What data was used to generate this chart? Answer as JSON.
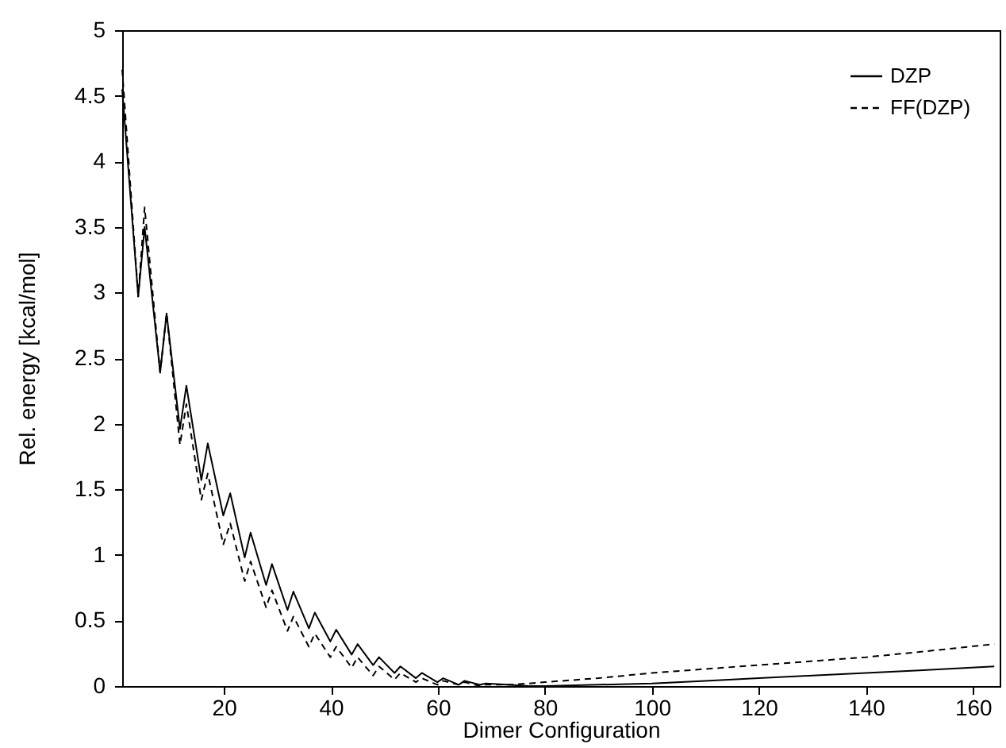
{
  "chart_data": {
    "type": "line",
    "xlabel": "Dimer Configuration",
    "ylabel": "Rel. energy [kcal/mol]",
    "xlim": [
      1,
      165
    ],
    "xticks": [
      20,
      40,
      60,
      80,
      100,
      120,
      140,
      160
    ],
    "ylim": [
      0,
      5
    ],
    "yticks": [
      0,
      0.5,
      1,
      1.5,
      2,
      2.5,
      3,
      3.5,
      4,
      4.5,
      5
    ],
    "grid": false,
    "legend": "top right",
    "marker": "none",
    "series": [
      {
        "name": "DZP",
        "color": "#000000",
        "line_style": "solid",
        "x": [
          1,
          4,
          5.2,
          8.1,
          9.3,
          11.8,
          13,
          15.8,
          17,
          19.9,
          21.2,
          23.9,
          25,
          27.9,
          29,
          31.9,
          33,
          35.9,
          37,
          39.9,
          41,
          43.9,
          45,
          47.9,
          49,
          51.9,
          53,
          55.9,
          57,
          59.9,
          61,
          63.9,
          65,
          67.9,
          69,
          73,
          77,
          80,
          90,
          100,
          110,
          120,
          130,
          140,
          150,
          164
        ],
        "values": [
          4.55,
          2.97,
          3.5,
          2.39,
          2.84,
          1.96,
          2.29,
          1.57,
          1.85,
          1.3,
          1.47,
          0.98,
          1.17,
          0.77,
          0.93,
          0.58,
          0.72,
          0.44,
          0.56,
          0.34,
          0.43,
          0.24,
          0.32,
          0.16,
          0.22,
          0.1,
          0.15,
          0.06,
          0.1,
          0.03,
          0.06,
          0.01,
          0.04,
          0.01,
          0.02,
          0.01,
          0,
          0,
          0.01,
          0.02,
          0.04,
          0.06,
          0.08,
          0.1,
          0.12,
          0.15
        ]
      },
      {
        "name": "FF(DZP)",
        "color": "#000000",
        "line_style": "dashed",
        "x": [
          1,
          4,
          5.2,
          8.1,
          9.3,
          11.8,
          13,
          15.8,
          17,
          19.9,
          21.2,
          23.9,
          25,
          27.9,
          29,
          31.9,
          33,
          35.9,
          37,
          39.9,
          41,
          43.9,
          45,
          47.9,
          49,
          51.9,
          53,
          55.9,
          57,
          59.9,
          61,
          63.9,
          65,
          67.9,
          69,
          73,
          77,
          80,
          90,
          100,
          110,
          120,
          130,
          140,
          150,
          164
        ],
        "values": [
          4.7,
          2.97,
          3.65,
          2.39,
          2.84,
          1.84,
          2.15,
          1.42,
          1.62,
          1.08,
          1.24,
          0.8,
          0.95,
          0.6,
          0.73,
          0.42,
          0.53,
          0.3,
          0.4,
          0.22,
          0.3,
          0.14,
          0.22,
          0.08,
          0.15,
          0.05,
          0.1,
          0.03,
          0.06,
          0.01,
          0.04,
          0.01,
          0.03,
          0,
          0.01,
          0.01,
          0.02,
          0.03,
          0.06,
          0.1,
          0.13,
          0.16,
          0.19,
          0.22,
          0.26,
          0.32
        ]
      }
    ]
  }
}
